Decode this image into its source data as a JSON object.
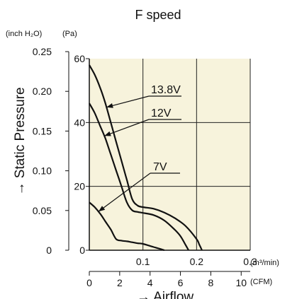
{
  "chart_data": {
    "type": "line",
    "title": "F speed",
    "ylabel": "→ Static Pressure",
    "xlabel": "→ Airflow",
    "y_units": {
      "left": "(inch H₂O)",
      "right": "(Pa)"
    },
    "x_units": {
      "primary": "(m³/min)",
      "secondary": "(CFM)"
    },
    "xlim": [
      0,
      0.3
    ],
    "ylim": [
      0,
      60
    ],
    "x_ticks": [
      "0.1",
      "0.2",
      "0.3"
    ],
    "y_ticks_pa": [
      "0",
      "20",
      "40",
      "60"
    ],
    "y_ticks_inch": [
      "0",
      "0.05",
      "0.10",
      "0.15",
      "0.20",
      "0.25"
    ],
    "cfm_ticks": [
      "0",
      "2",
      "4",
      "6",
      "8",
      "10"
    ],
    "grid": true,
    "background_color": "#f7f3dc",
    "line_color": "#111111",
    "series": [
      {
        "name": "13.8V",
        "x": [
          0,
          0.01,
          0.02,
          0.03,
          0.04,
          0.05,
          0.06,
          0.07,
          0.08,
          0.09,
          0.1,
          0.12,
          0.14,
          0.16,
          0.18,
          0.2,
          0.205,
          0.21
        ],
        "y": [
          58,
          55,
          51,
          46,
          40,
          34,
          28,
          22,
          16,
          14,
          13.5,
          13,
          11.8,
          10,
          7.5,
          3.5,
          1.8,
          0
        ]
      },
      {
        "name": "12V",
        "x": [
          0,
          0.01,
          0.02,
          0.03,
          0.04,
          0.05,
          0.06,
          0.07,
          0.08,
          0.09,
          0.1,
          0.12,
          0.14,
          0.16,
          0.17,
          0.18,
          0.185
        ],
        "y": [
          46,
          43,
          39,
          35,
          30,
          25,
          20,
          15,
          12.5,
          12,
          11.7,
          11,
          9.3,
          6.3,
          4.4,
          1.5,
          0
        ]
      },
      {
        "name": "7V",
        "x": [
          0,
          0.01,
          0.02,
          0.03,
          0.04,
          0.05,
          0.06,
          0.07,
          0.08,
          0.09,
          0.1,
          0.11,
          0.12,
          0.13,
          0.14
        ],
        "y": [
          15,
          13.5,
          11.5,
          9,
          6.5,
          3.5,
          3,
          2.8,
          2.5,
          2.2,
          2,
          1.5,
          1,
          0.5,
          0
        ]
      }
    ]
  }
}
